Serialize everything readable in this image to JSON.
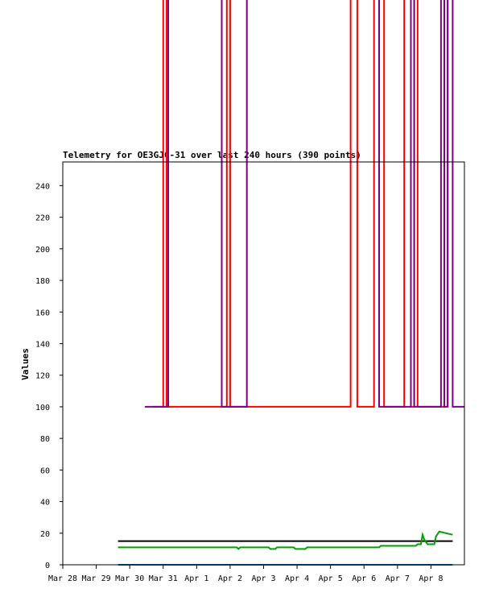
{
  "chart_data": {
    "type": "line",
    "title": "Telemetry for OE3GJC-31 over last 240 hours (390 points)",
    "xlabel": "",
    "ylabel": "Values",
    "ylim": [
      0,
      255
    ],
    "y_ticks": [
      0,
      20,
      40,
      60,
      80,
      100,
      120,
      140,
      160,
      180,
      200,
      220,
      240
    ],
    "x_tick_labels": [
      "Mar 28",
      "Mar 29",
      "Mar 30",
      "Mar 31",
      "Apr 1",
      "Apr 2",
      "Apr 3",
      "Apr 4",
      "Apr 5",
      "Apr 6",
      "Apr 7",
      "Apr 8"
    ],
    "grid": false,
    "legend": "none",
    "colors": {
      "red": "#ff0000",
      "purple": "#800080",
      "black": "#000000",
      "green": "#00a000",
      "blue": "#0070c0",
      "axis": "#000000"
    },
    "series": [
      {
        "color": "red",
        "points": [
          [
            28.7,
            100
          ],
          [
            29.0,
            100
          ],
          [
            29.0,
            440
          ],
          [
            29.1,
            440
          ],
          [
            29.1,
            100
          ],
          [
            30.9,
            100
          ],
          [
            30.9,
            440
          ],
          [
            31.0,
            440
          ],
          [
            31.0,
            100
          ],
          [
            34.6,
            100
          ],
          [
            34.6,
            440
          ],
          [
            34.8,
            440
          ],
          [
            34.8,
            100
          ],
          [
            35.3,
            100
          ],
          [
            35.3,
            440
          ],
          [
            35.6,
            440
          ],
          [
            35.6,
            100
          ],
          [
            36.2,
            100
          ],
          [
            36.2,
            440
          ],
          [
            36.4,
            440
          ],
          [
            36.4,
            100
          ],
          [
            36.5,
            100
          ],
          [
            36.5,
            440
          ],
          [
            36.6,
            440
          ],
          [
            36.6,
            100
          ],
          [
            37.4,
            100
          ],
          [
            37.4,
            440
          ],
          [
            37.5,
            440
          ],
          [
            37.5,
            100
          ]
        ]
      },
      {
        "color": "purple",
        "points": [
          [
            28.45,
            100
          ],
          [
            29.15,
            100
          ],
          [
            29.15,
            440
          ],
          [
            30.75,
            440
          ],
          [
            30.75,
            100
          ],
          [
            31.5,
            100
          ],
          [
            31.5,
            440
          ],
          [
            35.45,
            440
          ],
          [
            35.45,
            100
          ],
          [
            36.4,
            100
          ],
          [
            36.4,
            440
          ],
          [
            36.5,
            440
          ],
          [
            36.5,
            100
          ],
          [
            37.3,
            100
          ],
          [
            37.3,
            440
          ],
          [
            37.4,
            440
          ],
          [
            37.4,
            100
          ],
          [
            37.5,
            100
          ],
          [
            37.5,
            440
          ],
          [
            37.65,
            440
          ],
          [
            37.65,
            100
          ],
          [
            38.0,
            100
          ]
        ]
      },
      {
        "color": "black",
        "points": [
          [
            27.65,
            15
          ],
          [
            37.65,
            15
          ]
        ]
      },
      {
        "color": "green",
        "points": [
          [
            27.65,
            11
          ],
          [
            31.2,
            11
          ],
          [
            31.25,
            10
          ],
          [
            31.3,
            11
          ],
          [
            32.15,
            11
          ],
          [
            32.2,
            10
          ],
          [
            32.35,
            10
          ],
          [
            32.4,
            11
          ],
          [
            32.9,
            11
          ],
          [
            32.95,
            10
          ],
          [
            33.25,
            10
          ],
          [
            33.3,
            11
          ],
          [
            35.45,
            11
          ],
          [
            35.5,
            12
          ],
          [
            36.55,
            12
          ],
          [
            36.6,
            13
          ],
          [
            36.7,
            13
          ],
          [
            36.75,
            19
          ],
          [
            36.8,
            16
          ],
          [
            36.9,
            13
          ],
          [
            37.1,
            13
          ],
          [
            37.15,
            18
          ],
          [
            37.25,
            21
          ],
          [
            37.45,
            20
          ],
          [
            37.65,
            19
          ]
        ]
      },
      {
        "color": "blue",
        "points": [
          [
            27.65,
            0
          ],
          [
            37.65,
            0
          ]
        ]
      }
    ]
  }
}
